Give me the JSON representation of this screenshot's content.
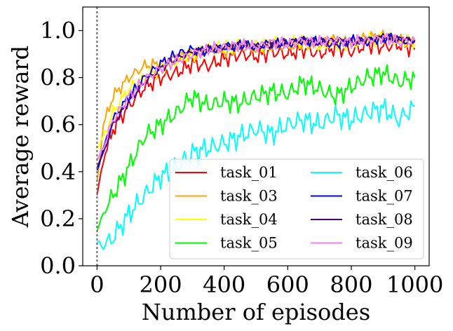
{
  "chart_data": {
    "type": "line",
    "title": "",
    "xlabel": "Number of episodes",
    "ylabel": "Average reward",
    "xlim": [
      -45,
      1045
    ],
    "ylim": [
      0.0,
      1.1
    ],
    "xticks": [
      "0",
      "200",
      "400",
      "600",
      "800",
      "1000"
    ],
    "yticks": [
      "0.0",
      "0.2",
      "0.4",
      "0.6",
      "0.8",
      "1.0"
    ],
    "grid": false,
    "vline_x": 0,
    "legend_position": "lower-right",
    "legend_columns": 2,
    "series": [
      {
        "name": "task_01",
        "color": "#ff0000",
        "x": [
          0,
          20,
          50,
          100,
          150,
          200,
          250,
          300,
          350,
          400,
          450,
          500,
          550,
          600,
          650,
          700,
          750,
          800,
          850,
          900,
          950,
          1000
        ],
        "y": [
          0.3,
          0.45,
          0.58,
          0.68,
          0.76,
          0.8,
          0.82,
          0.86,
          0.85,
          0.88,
          0.9,
          0.89,
          0.91,
          0.9,
          0.92,
          0.9,
          0.93,
          0.91,
          0.94,
          0.93,
          0.94,
          0.92
        ]
      },
      {
        "name": "task_03",
        "color": "#ffa500",
        "x": [
          0,
          20,
          50,
          100,
          150,
          200,
          250,
          300,
          350,
          400,
          450,
          500,
          550,
          600,
          650,
          700,
          750,
          800,
          850,
          900,
          950,
          1000
        ],
        "y": [
          0.35,
          0.6,
          0.72,
          0.8,
          0.85,
          0.86,
          0.88,
          0.9,
          0.92,
          0.91,
          0.93,
          0.92,
          0.94,
          0.93,
          0.95,
          0.94,
          0.96,
          0.95,
          0.97,
          0.98,
          0.96,
          0.95
        ]
      },
      {
        "name": "task_04",
        "color": "#ffff00",
        "x": [
          0,
          20,
          50,
          100,
          150,
          200,
          250,
          300,
          350,
          400,
          450,
          500,
          550,
          600,
          650,
          700,
          750,
          800,
          850,
          900,
          950,
          1000
        ],
        "y": [
          0.5,
          0.55,
          0.65,
          0.75,
          0.8,
          0.84,
          0.87,
          0.9,
          0.92,
          0.93,
          0.94,
          0.93,
          0.95,
          0.94,
          0.96,
          0.93,
          0.95,
          0.94,
          0.96,
          0.97,
          0.95,
          0.96
        ]
      },
      {
        "name": "task_05",
        "color": "#00ff00",
        "x": [
          0,
          20,
          50,
          100,
          150,
          200,
          250,
          300,
          350,
          400,
          450,
          500,
          550,
          600,
          650,
          700,
          750,
          800,
          850,
          900,
          950,
          1000
        ],
        "y": [
          0.15,
          0.22,
          0.3,
          0.42,
          0.55,
          0.6,
          0.65,
          0.72,
          0.68,
          0.7,
          0.69,
          0.72,
          0.74,
          0.73,
          0.78,
          0.75,
          0.72,
          0.76,
          0.8,
          0.82,
          0.78,
          0.8
        ]
      },
      {
        "name": "task_06",
        "color": "#00ffff",
        "x": [
          0,
          20,
          50,
          100,
          150,
          200,
          250,
          300,
          350,
          400,
          450,
          500,
          550,
          600,
          650,
          700,
          750,
          800,
          850,
          900,
          950,
          1000
        ],
        "y": [
          0.1,
          0.08,
          0.12,
          0.22,
          0.3,
          0.38,
          0.42,
          0.48,
          0.5,
          0.52,
          0.55,
          0.58,
          0.56,
          0.6,
          0.62,
          0.6,
          0.64,
          0.62,
          0.65,
          0.67,
          0.62,
          0.68
        ]
      },
      {
        "name": "task_07",
        "color": "#0000ff",
        "x": [
          0,
          20,
          50,
          100,
          150,
          200,
          250,
          300,
          350,
          400,
          450,
          500,
          550,
          600,
          650,
          700,
          750,
          800,
          850,
          900,
          950,
          1000
        ],
        "y": [
          0.4,
          0.5,
          0.62,
          0.72,
          0.8,
          0.86,
          0.9,
          0.92,
          0.91,
          0.93,
          0.94,
          0.93,
          0.95,
          0.94,
          0.96,
          0.95,
          0.94,
          0.96,
          0.95,
          0.97,
          0.96,
          0.95
        ]
      },
      {
        "name": "task_08",
        "color": "#4b0082",
        "x": [
          0,
          20,
          50,
          100,
          150,
          200,
          250,
          300,
          350,
          400,
          450,
          500,
          550,
          600,
          650,
          700,
          750,
          800,
          850,
          900,
          950,
          1000
        ],
        "y": [
          0.42,
          0.48,
          0.6,
          0.7,
          0.78,
          0.84,
          0.88,
          0.91,
          0.92,
          0.93,
          0.94,
          0.93,
          0.94,
          0.95,
          0.96,
          0.95,
          0.96,
          0.95,
          0.96,
          0.97,
          0.96,
          0.96
        ]
      },
      {
        "name": "task_09",
        "color": "#ee82ee",
        "x": [
          0,
          20,
          50,
          100,
          150,
          200,
          250,
          300,
          350,
          400,
          450,
          500,
          550,
          600,
          650,
          700,
          750,
          800,
          850,
          900,
          950,
          1000
        ],
        "y": [
          0.45,
          0.5,
          0.62,
          0.72,
          0.79,
          0.84,
          0.87,
          0.9,
          0.92,
          0.93,
          0.94,
          0.93,
          0.95,
          0.94,
          0.96,
          0.95,
          0.96,
          0.95,
          0.96,
          0.97,
          0.95,
          0.96
        ]
      }
    ]
  }
}
